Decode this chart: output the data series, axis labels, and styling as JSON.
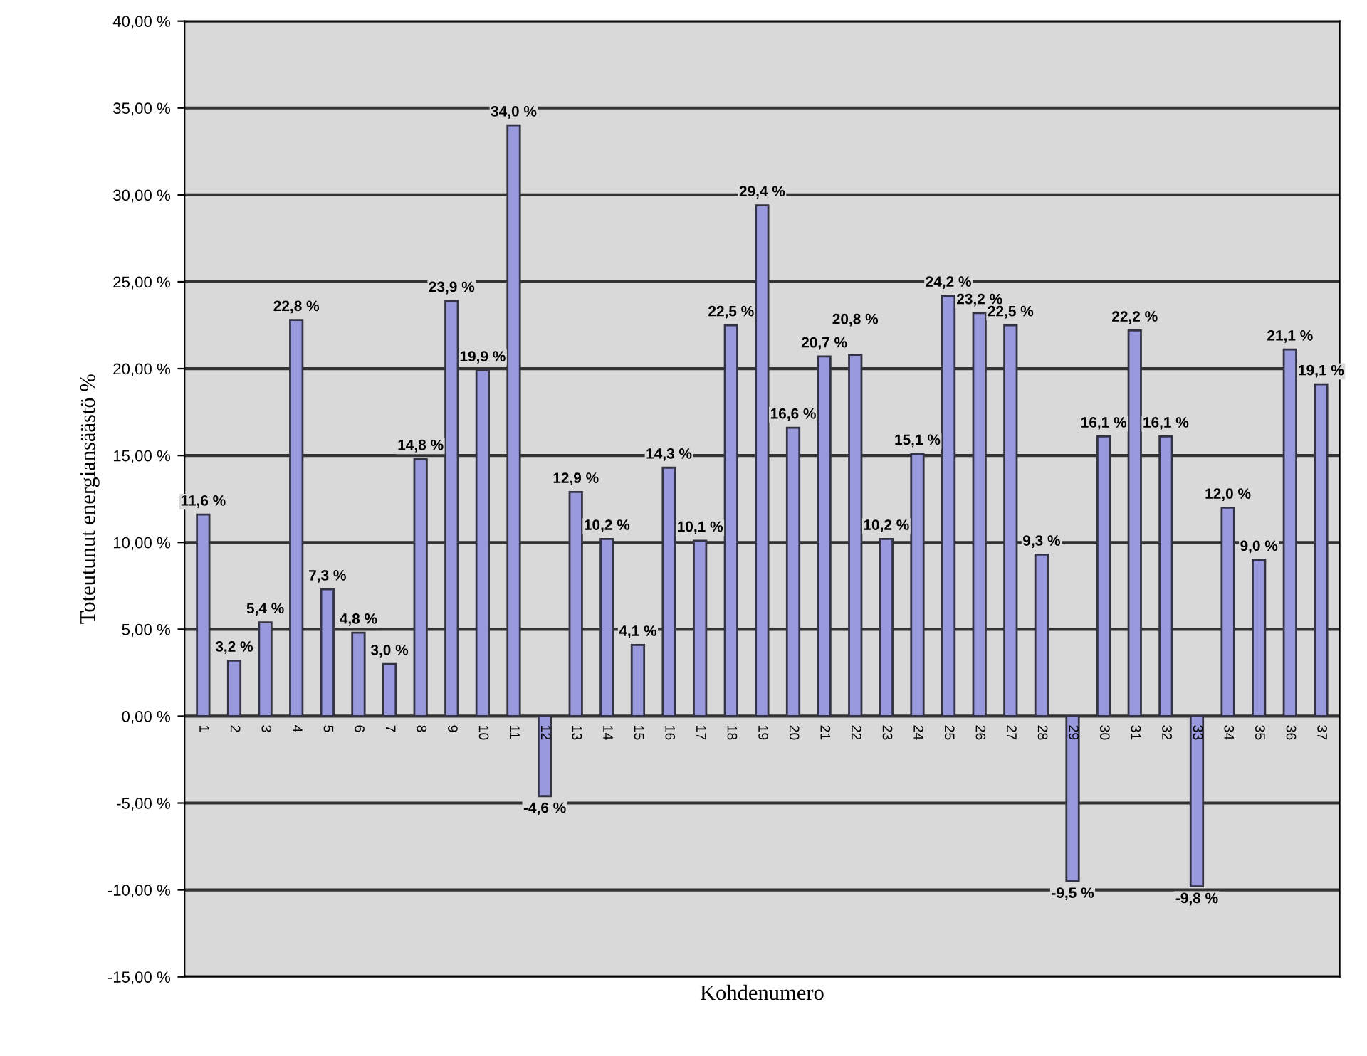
{
  "chart_data": {
    "type": "bar",
    "xlabel": "Kohdenumero",
    "ylabel": "Toteutunut energiansäästö %",
    "categories": [
      "1",
      "2",
      "3",
      "4",
      "5",
      "6",
      "7",
      "8",
      "9",
      "10",
      "11",
      "12",
      "13",
      "14",
      "15",
      "16",
      "17",
      "18",
      "19",
      "20",
      "21",
      "22",
      "23",
      "24",
      "25",
      "26",
      "27",
      "28",
      "29",
      "30",
      "31",
      "32",
      "33",
      "34",
      "35",
      "36",
      "37"
    ],
    "values": [
      11.6,
      3.2,
      5.4,
      22.8,
      7.3,
      4.8,
      3.0,
      14.8,
      23.9,
      19.9,
      34.0,
      -4.6,
      12.9,
      10.2,
      4.1,
      14.3,
      10.1,
      22.5,
      29.4,
      16.6,
      20.7,
      20.8,
      10.2,
      15.1,
      24.2,
      23.2,
      22.5,
      9.3,
      -9.5,
      16.1,
      22.2,
      16.1,
      -9.8,
      12.0,
      9.0,
      21.1,
      19.1
    ],
    "value_labels": [
      "11,6 %",
      "3,2 %",
      "5,4 %",
      "22,8 %",
      "7,3 %",
      "4,8 %",
      "3,0 %",
      "14,8 %",
      "23,9 %",
      "19,9 %",
      "34,0 %",
      "-4,6 %",
      "12,9 %",
      "10,2 %",
      "4,1 %",
      "14,3 %",
      "10,1 %",
      "22,5 %",
      "29,4 %",
      "16,6 %",
      "20,7 %",
      "20,8 %",
      "10,2 %",
      "15,1 %",
      "24,2 %",
      "23,2 %",
      "22,5 %",
      "9,3 %",
      "-9,5 %",
      "16,1 %",
      "22,2 %",
      "16,1 %",
      "-9,8 %",
      "12,0 %",
      "9,0 %",
      "21,1 %",
      "19,1 %"
    ],
    "color": "#9999dd",
    "ylim": [
      -15,
      40
    ],
    "yticks": [
      {
        "value": -15,
        "label": "-15,00 %"
      },
      {
        "value": -10,
        "label": "-10,00 %"
      },
      {
        "value": -5,
        "label": "-5,00 %"
      },
      {
        "value": 0,
        "label": "0,00 %"
      },
      {
        "value": 5,
        "label": "5,00 %"
      },
      {
        "value": 10,
        "label": "10,00 %"
      },
      {
        "value": 15,
        "label": "15,00 %"
      },
      {
        "value": 20,
        "label": "20,00 %"
      },
      {
        "value": 25,
        "label": "25,00 %"
      },
      {
        "value": 30,
        "label": "30,00 %"
      },
      {
        "value": 35,
        "label": "35,00 %"
      },
      {
        "value": 40,
        "label": "40,00 %"
      }
    ],
    "grid": "y"
  }
}
